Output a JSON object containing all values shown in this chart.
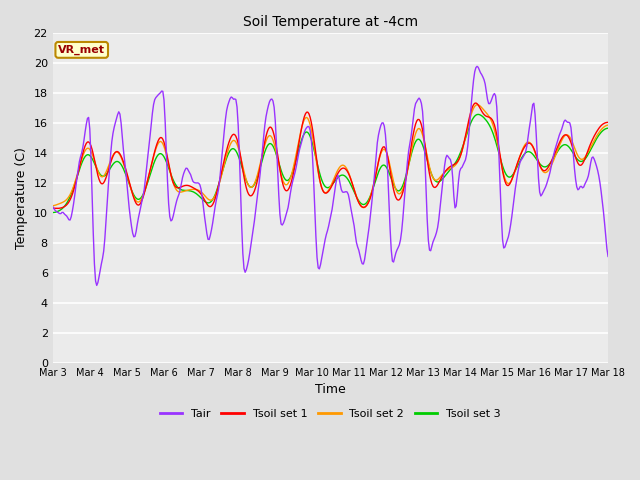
{
  "title": "Soil Temperature at -4cm",
  "xlabel": "Time",
  "ylabel": "Temperature (C)",
  "ylim": [
    0,
    22
  ],
  "yticks": [
    0,
    2,
    4,
    6,
    8,
    10,
    12,
    14,
    16,
    18,
    20,
    22
  ],
  "xtick_labels": [
    "Mar 3",
    "Mar 4",
    "Mar 5",
    "Mar 6",
    "Mar 7",
    "Mar 8",
    "Mar 9",
    "Mar 10",
    "Mar 11",
    "Mar 12",
    "Mar 13",
    "Mar 14",
    "Mar 15",
    "Mar 16",
    "Mar 17",
    "Mar 18"
  ],
  "annotation_text": "VR_met",
  "annotation_bg": "#ffffcc",
  "annotation_border": "#bb8800",
  "annotation_text_color": "#990000",
  "colors": {
    "Tair": "#9933ff",
    "Tsoil_set1": "#ff0000",
    "Tsoil_set2": "#ff9900",
    "Tsoil_set3": "#00cc00"
  },
  "legend_labels": [
    "Tair",
    "Tsoil set 1",
    "Tsoil set 2",
    "Tsoil set 3"
  ],
  "bg_color": "#e0e0e0",
  "plot_bg": "#ebebeb",
  "grid_color": "#ffffff",
  "linewidth": 1.0
}
